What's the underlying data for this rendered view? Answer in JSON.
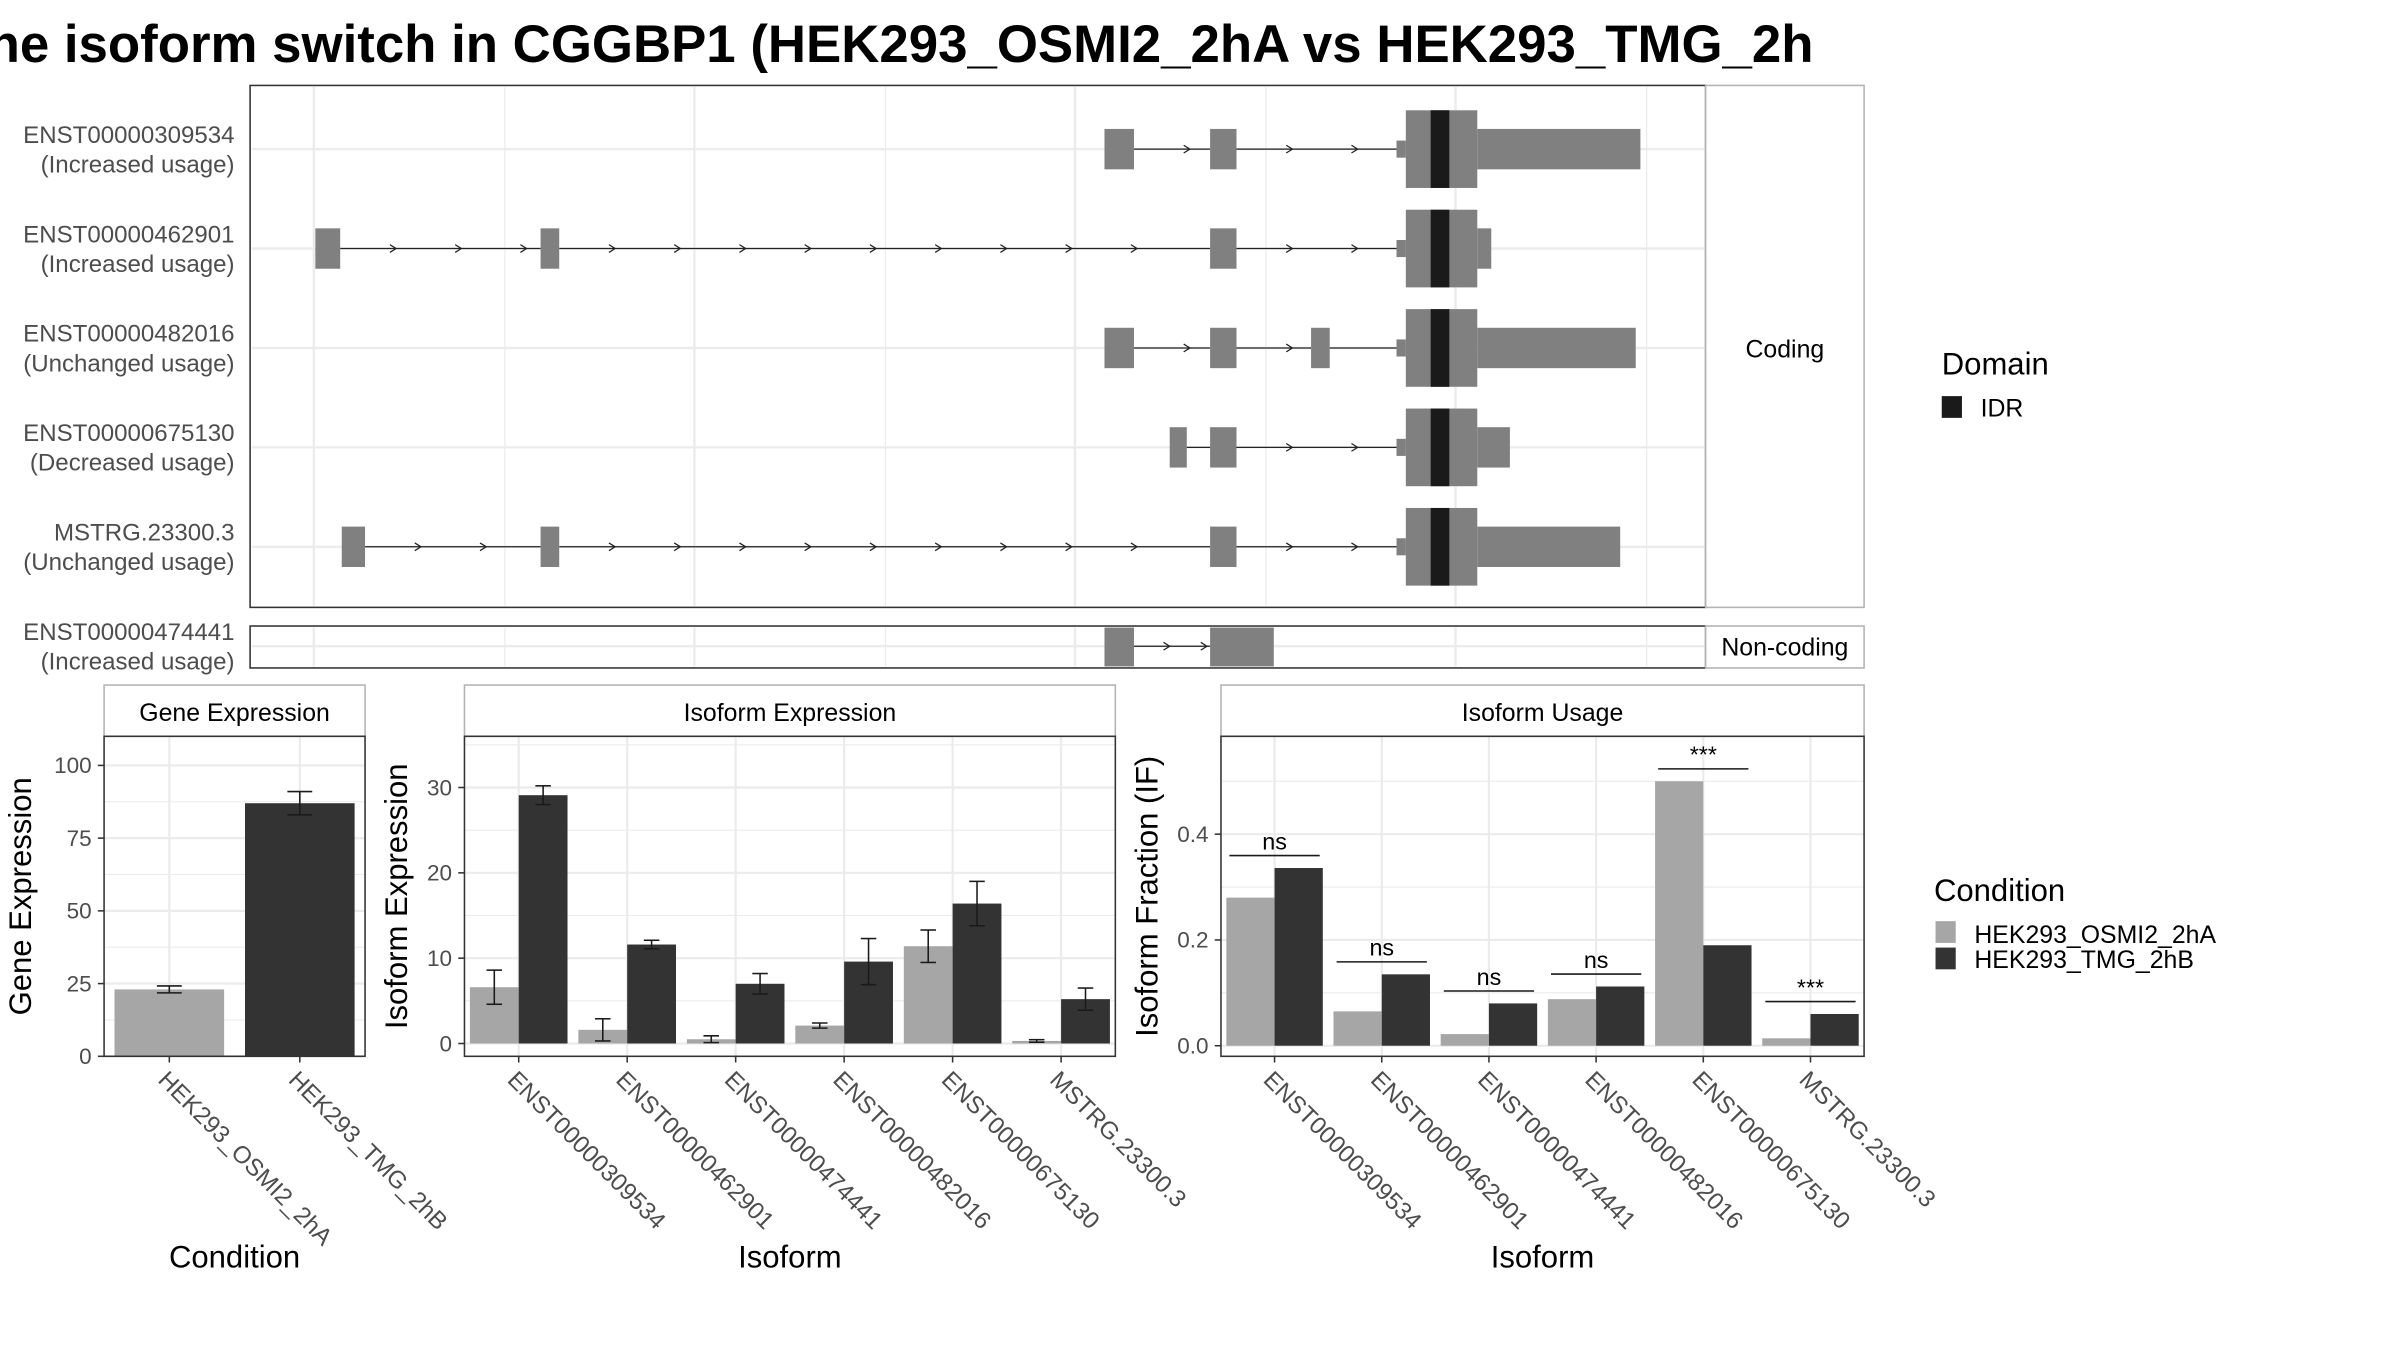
{
  "title": "he isoform switch in CGGBP1 (HEK293_OSMI2_2hA vs HEK293_TMG_2h",
  "colors": {
    "exon": "#808080",
    "idr": "#1a1a1a",
    "condition_a": "#a6a6a6",
    "condition_b": "#333333",
    "grid": "#ebebeb",
    "panel_border": "#333333",
    "strip_border": "#b3b3b3"
  },
  "structure": {
    "coding_strip": "Coding",
    "noncoding_strip": "Non-coding",
    "legend_title": "Domain",
    "legend_item": "IDR",
    "isoforms": [
      {
        "id": "ENST00000309534",
        "usage": "(Increased usage)",
        "group": "coding"
      },
      {
        "id": "ENST00000462901",
        "usage": "(Increased usage)",
        "group": "coding"
      },
      {
        "id": "ENST00000482016",
        "usage": "(Unchanged usage)",
        "group": "coding"
      },
      {
        "id": "ENST00000675130",
        "usage": "(Decreased usage)",
        "group": "coding"
      },
      {
        "id": "MSTRG.23300.3",
        "usage": "(Unchanged usage)",
        "group": "coding"
      },
      {
        "id": "ENST00000474441",
        "usage": "(Increased usage)",
        "group": "non-coding"
      }
    ]
  },
  "condition_legend": {
    "title": "Condition",
    "items": [
      "HEK293_OSMI2_2hA",
      "HEK293_TMG_2hB"
    ]
  },
  "chart_data": [
    {
      "type": "bar",
      "title": "Gene Expression",
      "xlabel": "Condition",
      "ylabel": "Gene Expression",
      "categories": [
        "HEK293_OSMI2_2hA",
        "HEK293_TMG_2hB"
      ],
      "values": [
        23,
        87
      ],
      "errors": [
        1.2,
        4
      ],
      "ylim": [
        0,
        110
      ],
      "yticks": [
        0,
        25,
        50,
        75,
        100
      ]
    },
    {
      "type": "bar",
      "title": "Isoform Expression",
      "xlabel": "Isoform",
      "ylabel": "Isoform Expression",
      "categories": [
        "ENST00000309534",
        "ENST00000462901",
        "ENST00000474441",
        "ENST00000482016",
        "ENST00000675130",
        "MSTRG.23300.3"
      ],
      "series": [
        {
          "name": "HEK293_OSMI2_2hA",
          "values": [
            6.6,
            1.6,
            0.5,
            2.1,
            11.4,
            0.3
          ],
          "errors": [
            2.0,
            1.3,
            0.4,
            0.3,
            1.9,
            0.15
          ]
        },
        {
          "name": "HEK293_TMG_2hB",
          "values": [
            29.1,
            11.6,
            7.0,
            9.6,
            16.4,
            5.2
          ],
          "errors": [
            1.1,
            0.5,
            1.2,
            2.7,
            2.6,
            1.3
          ]
        }
      ],
      "ylim": [
        -1.5,
        36
      ],
      "yticks": [
        0,
        10,
        20,
        30
      ]
    },
    {
      "type": "bar",
      "title": "Isoform Usage",
      "xlabel": "Isoform",
      "ylabel": "Isoform Fraction (IF)",
      "categories": [
        "ENST00000309534",
        "ENST00000462901",
        "ENST00000474441",
        "ENST00000482016",
        "ENST00000675130",
        "MSTRG.23300.3"
      ],
      "series": [
        {
          "name": "HEK293_OSMI2_2hA",
          "values": [
            0.28,
            0.065,
            0.022,
            0.088,
            0.5,
            0.014
          ]
        },
        {
          "name": "HEK293_TMG_2hB",
          "values": [
            0.336,
            0.135,
            0.08,
            0.112,
            0.19,
            0.06
          ]
        }
      ],
      "significance": [
        "ns",
        "ns",
        "ns",
        "ns",
        "***",
        "***"
      ],
      "ylim": [
        -0.02,
        0.585
      ],
      "yticks": [
        0.0,
        0.2,
        0.4
      ],
      "ytick_labels": [
        "0.0",
        "0.2",
        "0.4"
      ]
    }
  ]
}
